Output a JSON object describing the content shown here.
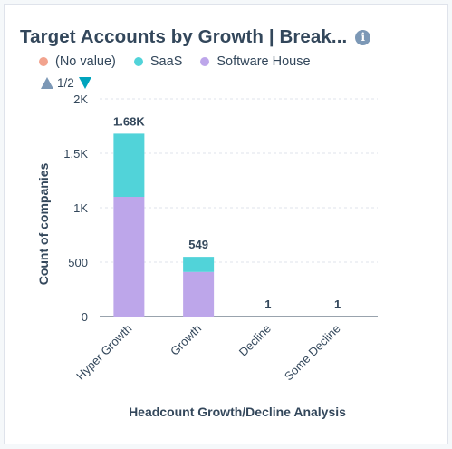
{
  "header": {
    "title": "Target Accounts by Growth | Break...",
    "info_icon": "info-icon"
  },
  "legend": {
    "items": [
      {
        "label": "(No value)",
        "color": "#f2a38e"
      },
      {
        "label": "SaaS",
        "color": "#51d3d9"
      },
      {
        "label": "Software House",
        "color": "#bda6ea"
      }
    ],
    "pager": "1/2"
  },
  "chart_data": {
    "type": "bar",
    "stacked": true,
    "categories": [
      "Hyper Growth",
      "Growth",
      "Decline",
      "Some Decline"
    ],
    "series": [
      {
        "name": "(No value)",
        "color": "#f2a38e",
        "values": [
          0,
          0,
          0,
          0
        ]
      },
      {
        "name": "Software House",
        "color": "#bda6ea",
        "values": [
          1100,
          410,
          1,
          1
        ]
      },
      {
        "name": "SaaS",
        "color": "#51d3d9",
        "values": [
          580,
          139,
          0,
          0
        ]
      }
    ],
    "totals": [
      1680,
      549,
      1,
      1
    ],
    "total_labels": [
      "1.68K",
      "549",
      "1",
      "1"
    ],
    "xlabel": "Headcount Growth/Decline Analysis",
    "ylabel": "Count of companies",
    "ylim": [
      0,
      2000
    ],
    "yticks": [
      0,
      500,
      1000,
      1500,
      2000
    ],
    "ytick_labels": [
      "0",
      "500",
      "1K",
      "1.5K",
      "2K"
    ],
    "grid": true
  }
}
